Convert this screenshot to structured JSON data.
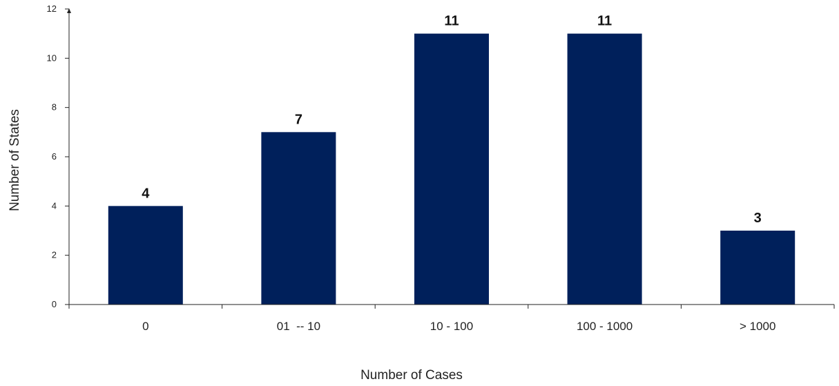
{
  "chart_data": {
    "type": "bar",
    "categories": [
      "0",
      "01  -- 10",
      "10 - 100",
      "100 - 1000",
      "> 1000"
    ],
    "values": [
      4,
      7,
      11,
      11,
      3
    ],
    "data_labels": [
      "4",
      "7",
      "11",
      "11",
      "3"
    ],
    "title": "",
    "xlabel": "Number of Cases",
    "ylabel": "Number of States",
    "ylim": [
      0,
      12
    ],
    "yticks": [
      "0",
      "2",
      "4",
      "6",
      "8",
      "10",
      "12"
    ],
    "grid": false,
    "legend": "none",
    "colors": {
      "bar": "#00205b",
      "axis": "#222222"
    }
  }
}
